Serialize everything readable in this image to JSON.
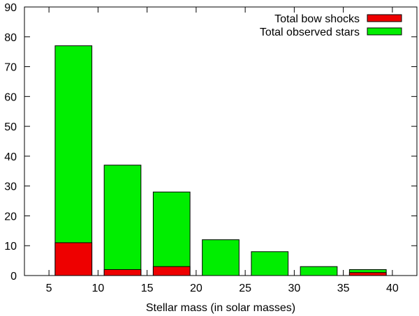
{
  "chart_data": {
    "type": "bar",
    "title": "",
    "xlabel": "Stellar mass (in solar masses)",
    "ylabel": "",
    "xlim": [
      2.5,
      42.5
    ],
    "ylim": [
      0,
      90
    ],
    "x_ticks": [
      5,
      10,
      15,
      20,
      25,
      30,
      35,
      40
    ],
    "y_ticks": [
      0,
      10,
      20,
      30,
      40,
      50,
      60,
      70,
      80,
      90
    ],
    "bin_width": 5,
    "bin_centers": [
      7.5,
      12.5,
      17.5,
      22.5,
      27.5,
      32.5,
      37.5
    ],
    "series": [
      {
        "name": "Total observed stars",
        "color": "#00ee00",
        "values": [
          77,
          37,
          28,
          12,
          8,
          3,
          2
        ]
      },
      {
        "name": "Total bow shocks",
        "color": "#ee0000",
        "values": [
          11,
          2,
          3,
          0,
          0,
          0,
          1
        ]
      }
    ],
    "legend_position": "top-right",
    "legend_order": [
      "Total bow shocks",
      "Total observed stars"
    ],
    "grid": false
  }
}
